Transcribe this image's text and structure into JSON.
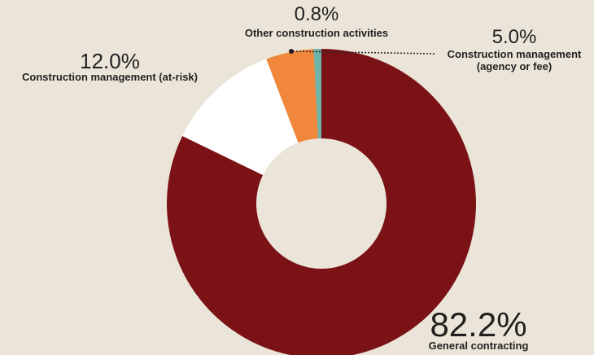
{
  "chart_data": {
    "type": "donut",
    "categories": [
      "General contracting",
      "Construction management (at-risk)",
      "Construction management (agency or fee)",
      "Other construction activities"
    ],
    "values": [
      82.2,
      12.0,
      5.0,
      0.8
    ],
    "value_labels": [
      "82.2%",
      "12.0%",
      "5.0%",
      "0.8%"
    ],
    "colors": [
      "#7b1316",
      "#ffffff",
      "#f0873a",
      "#6db3a8"
    ]
  }
}
